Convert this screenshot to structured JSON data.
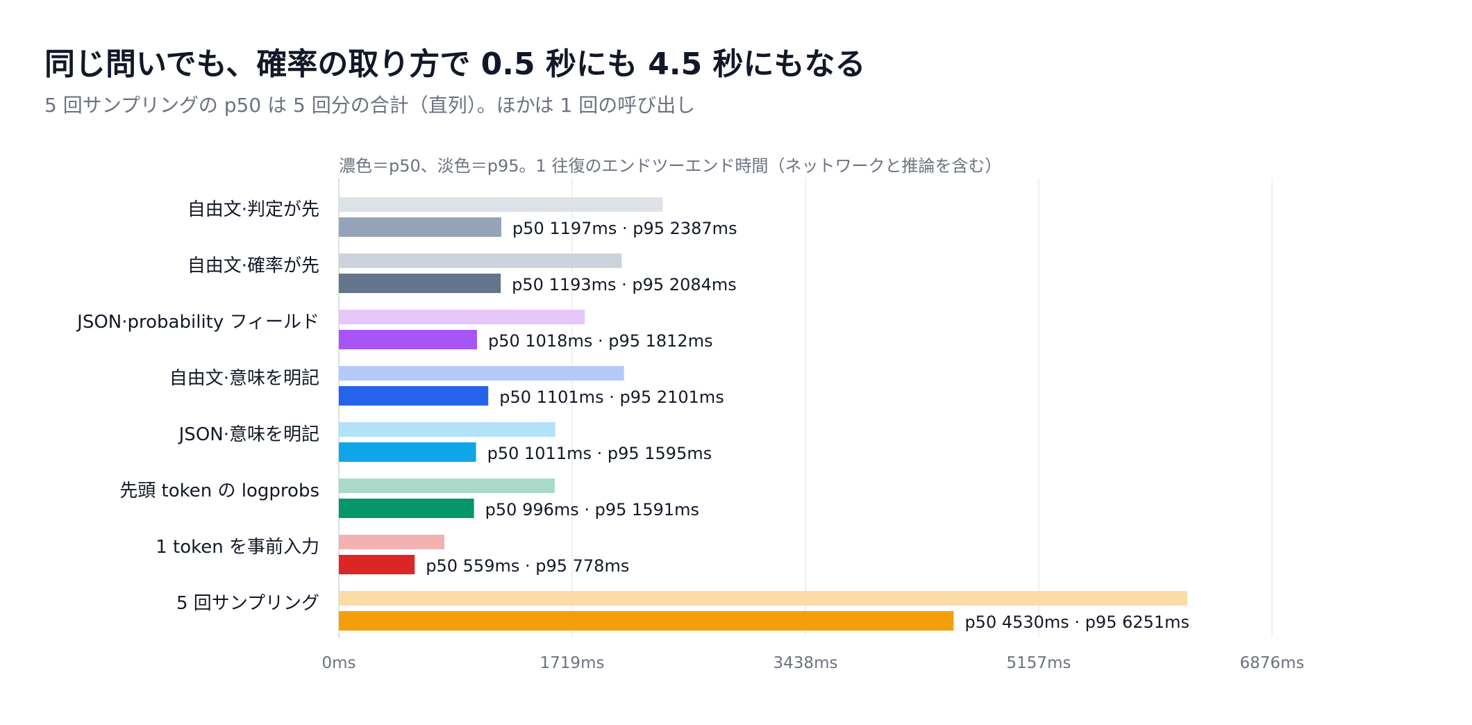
{
  "chart_data": {
    "type": "bar",
    "orientation": "horizontal",
    "title": "同じ問いでも、確率の取り方で 0.5 秒にも 4.5 秒にもなる",
    "subtitle": "5 回サンプリングの p50 は 5 回分の合計（直列）。ほかは 1 回の呼び出し",
    "note": "濃色＝p50、淡色＝p95。1 往復のエンドツーエンド時間（ネットワークと推論を含む）",
    "xlim": [
      0,
      6876
    ],
    "x_ticks": [
      0,
      1719,
      3438,
      5157,
      6876
    ],
    "x_tick_labels": [
      "0ms",
      "1719ms",
      "3438ms",
      "5157ms",
      "6876ms"
    ],
    "grid": true,
    "categories": [
      "自由文·判定が先",
      "自由文·確率が先",
      "JSON·probability フィールド",
      "自由文·意味を明記",
      "JSON·意味を明記",
      "先頭 token の logprobs",
      "1 token を事前入力",
      "5 回サンプリング"
    ],
    "p50": [
      1197,
      1193,
      1018,
      1101,
      1011,
      996,
      559,
      4530
    ],
    "p95": [
      2387,
      2084,
      1812,
      2101,
      1595,
      1591,
      778,
      6251
    ],
    "value_labels": [
      "p50 1197ms · p95 2387ms",
      "p50 1193ms · p95 2084ms",
      "p50 1018ms · p95 1812ms",
      "p50 1101ms · p95 2101ms",
      "p50 1011ms · p95 1595ms",
      "p50 996ms · p95 1591ms",
      "p50 559ms · p95 778ms",
      "p50 4530ms · p95 6251ms"
    ],
    "colors_p50": [
      "#94a3b8",
      "#64748b",
      "#a855f7",
      "#2563eb",
      "#0ea5e9",
      "#059669",
      "#dc2626",
      "#f59e0b"
    ],
    "colors_p95": [
      "#dde2e8",
      "#ccd3dc",
      "#e4c6f9",
      "#b5c9f8",
      "#b1e2f8",
      "#a9dac8",
      "#f3b1b1",
      "#fcdba5"
    ]
  }
}
